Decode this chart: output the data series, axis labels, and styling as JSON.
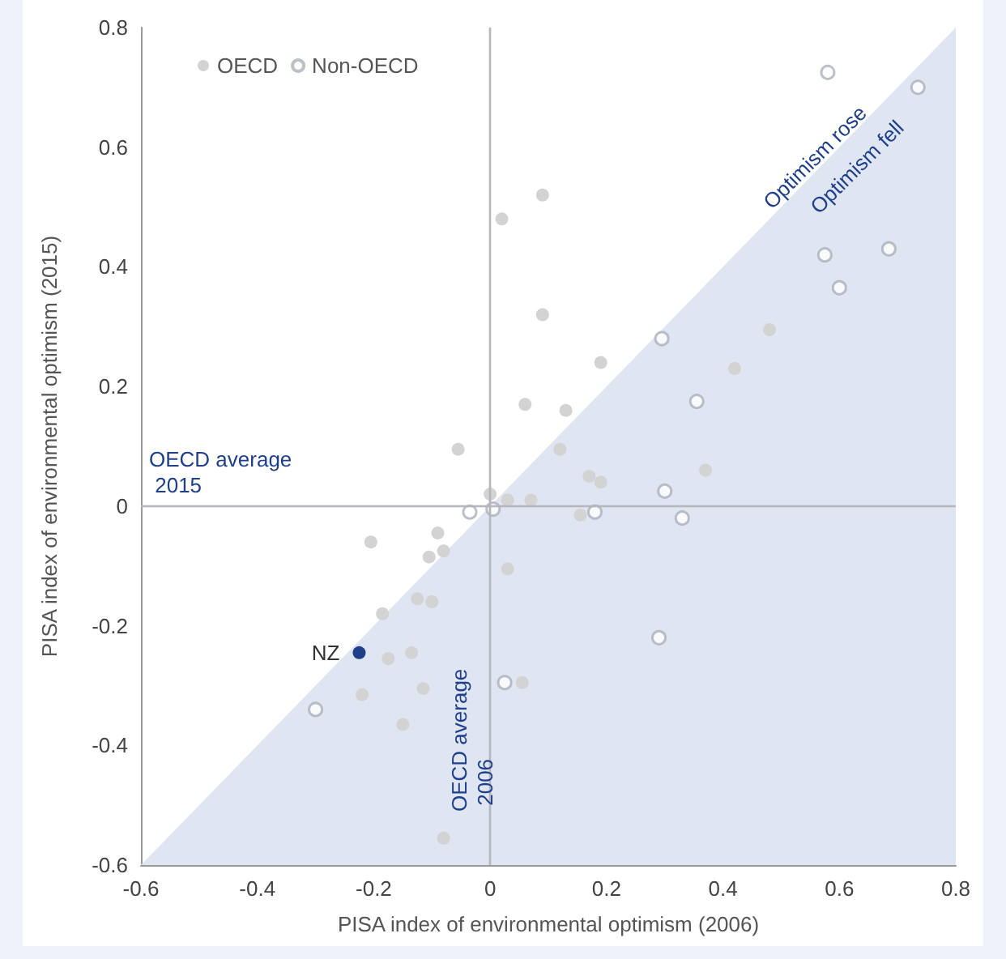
{
  "chart_data": {
    "type": "scatter",
    "xlabel": "PISA index of environmental optimism (2006)",
    "ylabel": "PISA index of environmental optimism (2015)",
    "xlim": [
      -0.6,
      0.8
    ],
    "ylim": [
      -0.6,
      0.8
    ],
    "xticks": [
      -0.6,
      -0.4,
      -0.2,
      0,
      0.2,
      0.4,
      0.6,
      0.8
    ],
    "yticks": [
      -0.6,
      -0.4,
      -0.2,
      0,
      0.2,
      0.4,
      0.6,
      0.8
    ],
    "grid": false,
    "legend": "top left",
    "marker": "circle",
    "series": [
      {
        "type": "area",
        "marker": "none",
        "color": "#dfe5f1",
        "x": [
          -0.6,
          0.8
        ],
        "values": [
          -0.6,
          0.8
        ]
      },
      {
        "name": "OECD",
        "color": "#d3d3d3",
        "x": [
          0.09,
          0.02,
          0.09,
          0.19,
          0.06,
          0.13,
          -0.055,
          0.12,
          0.17,
          0.19,
          0,
          0.03,
          0.07,
          0.155,
          0.42,
          0.48,
          0.37,
          -0.205,
          -0.09,
          -0.105,
          -0.08,
          0.03,
          -0.125,
          -0.1,
          -0.185,
          -0.175,
          -0.135,
          -0.22,
          -0.115,
          -0.15,
          0.055,
          -0.08
        ],
        "values": [
          0.52,
          0.48,
          0.32,
          0.24,
          0.17,
          0.16,
          0.095,
          0.095,
          0.05,
          0.04,
          0.02,
          0.01,
          0.01,
          -0.015,
          0.23,
          0.295,
          0.06,
          -0.06,
          -0.045,
          -0.085,
          -0.075,
          -0.105,
          -0.155,
          -0.16,
          -0.18,
          -0.255,
          -0.245,
          -0.315,
          -0.305,
          -0.365,
          -0.295,
          -0.555
        ]
      },
      {
        "name": "Non-OECD",
        "color": "#aab0bb",
        "x": [
          0.58,
          0.735,
          0.575,
          0.685,
          0.6,
          0.295,
          0.355,
          0.3,
          0.33,
          0.18,
          0.005,
          -0.035,
          -0.3,
          0.025,
          0.29
        ],
        "values": [
          0.725,
          0.7,
          0.42,
          0.43,
          0.365,
          0.28,
          0.175,
          0.025,
          -0.02,
          -0.01,
          -0.005,
          -0.01,
          -0.34,
          -0.295,
          -0.22
        ]
      },
      {
        "color": "#1f3f8a",
        "x": [
          -0.225
        ],
        "values": [
          -0.245
        ]
      }
    ],
    "ref_lines": [
      {
        "axis": "y",
        "value": 0,
        "label": "OECD average 2015",
        "color": "#b4b6bb"
      },
      {
        "axis": "x",
        "value": 0,
        "label": "OECD average 2006",
        "color": "#b4b6bb"
      }
    ],
    "annotations": [
      {
        "text": "NZ",
        "x": -0.225,
        "y": -0.245
      },
      "Optimism rose",
      "Optimism fell"
    ]
  }
}
